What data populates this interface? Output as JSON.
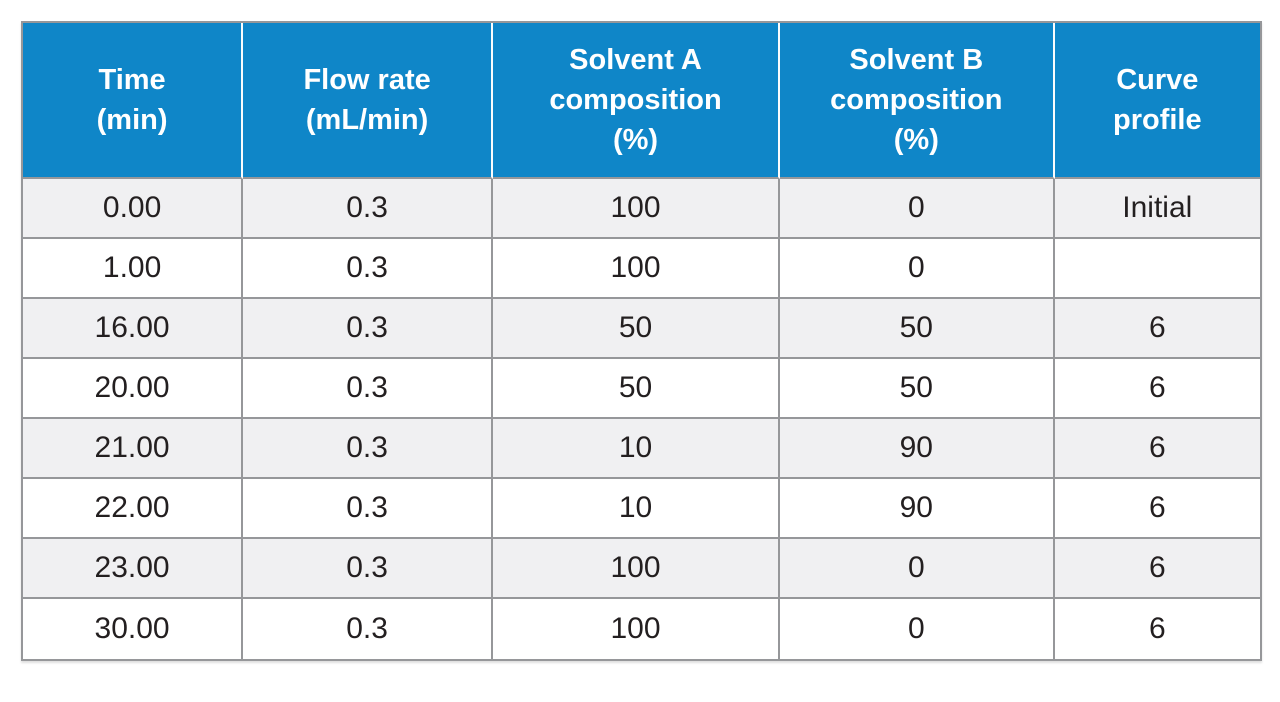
{
  "table": {
    "columns": [
      "Time\n(min)",
      "Flow rate\n(mL/min)",
      "Solvent A\ncomposition\n(%)",
      "Solvent B\ncomposition\n(%)",
      "Curve\nprofile"
    ],
    "rows": [
      [
        "0.00",
        "0.3",
        "100",
        "0",
        "Initial"
      ],
      [
        "1.00",
        "0.3",
        "100",
        "0",
        ""
      ],
      [
        "16.00",
        "0.3",
        "50",
        "50",
        "6"
      ],
      [
        "20.00",
        "0.3",
        "50",
        "50",
        "6"
      ],
      [
        "21.00",
        "0.3",
        "10",
        "90",
        "6"
      ],
      [
        "22.00",
        "0.3",
        "10",
        "90",
        "6"
      ],
      [
        "23.00",
        "0.3",
        "100",
        "0",
        "6"
      ],
      [
        "30.00",
        "0.3",
        "100",
        "0",
        "6"
      ]
    ]
  },
  "colors": {
    "header_bg": "#0F86C8",
    "header_text": "#FFFFFF",
    "row_bg": "#FFFFFF",
    "row_alt_bg": "#F0F0F2",
    "border_gray": "#96979A",
    "header_divider": "#FAFCFD",
    "body_text": "#231F20"
  }
}
